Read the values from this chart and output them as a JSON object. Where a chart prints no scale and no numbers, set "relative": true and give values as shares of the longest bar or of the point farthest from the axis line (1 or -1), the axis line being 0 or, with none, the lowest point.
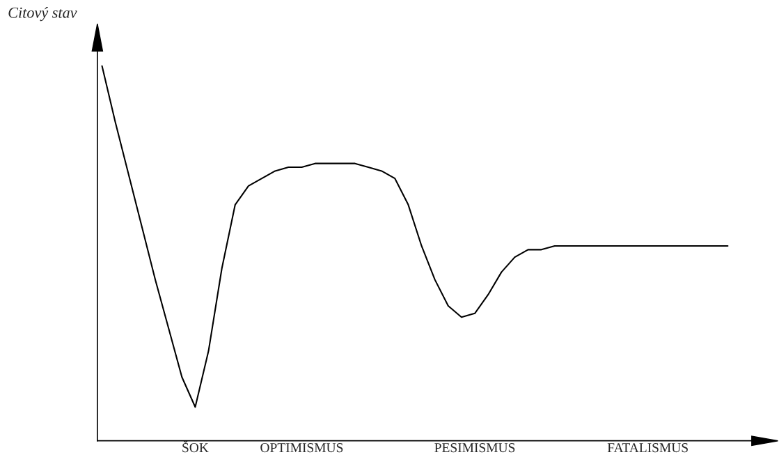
{
  "chart_data": {
    "type": "line",
    "relative": true,
    "ylabel": "Citový stav",
    "grid": false,
    "legend": false,
    "marker": "none",
    "line_style": "solid",
    "categories": [
      null,
      null,
      null,
      null,
      null,
      null,
      null,
      "ŠOK",
      null,
      null,
      null,
      null,
      null,
      null,
      null,
      "OPTIMISMUS",
      null,
      null,
      null,
      null,
      null,
      null,
      null,
      null,
      null,
      null,
      null,
      null,
      "PESIMISMUS",
      null,
      null,
      null,
      null,
      null,
      null,
      null,
      null,
      null,
      null,
      null,
      null,
      "FATALISMUS",
      null,
      null,
      null,
      null,
      null,
      null
    ],
    "series": [
      {
        "color": "#000000",
        "values": [
          1.0,
          0.85,
          0.71,
          0.57,
          0.43,
          0.3,
          0.17,
          0.09,
          0.24,
          0.46,
          0.63,
          0.68,
          0.7,
          0.72,
          0.73,
          0.73,
          0.74,
          0.74,
          0.74,
          0.74,
          0.73,
          0.72,
          0.7,
          0.63,
          0.52,
          0.43,
          0.36,
          0.33,
          0.34,
          0.39,
          0.45,
          0.49,
          0.51,
          0.51,
          0.52,
          0.52,
          0.52,
          0.52,
          0.52,
          0.52,
          0.52,
          0.52,
          0.52,
          0.52,
          0.52,
          0.52,
          0.52,
          0.52
        ]
      }
    ]
  }
}
